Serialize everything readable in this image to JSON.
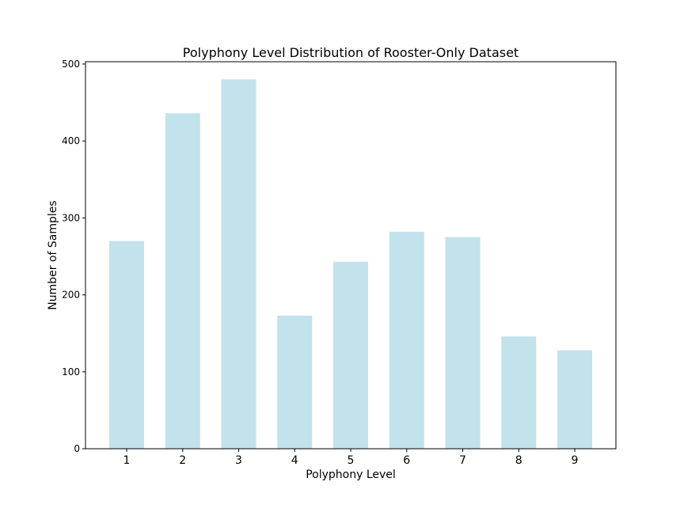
{
  "chart_data": {
    "type": "bar",
    "title": "Polyphony Level Distribution of Rooster-Only Dataset",
    "xlabel": "Polyphony Level",
    "ylabel": "Number of Samples",
    "categories": [
      "1",
      "2",
      "3",
      "4",
      "5",
      "6",
      "7",
      "8",
      "9"
    ],
    "values": [
      270,
      436,
      480,
      173,
      243,
      282,
      275,
      146,
      128
    ],
    "ylim": [
      0,
      503
    ],
    "yticks": [
      0,
      100,
      200,
      300,
      400,
      500
    ],
    "grid": false,
    "bar_color": "#add8e6",
    "bar_opacity": 0.75
  }
}
